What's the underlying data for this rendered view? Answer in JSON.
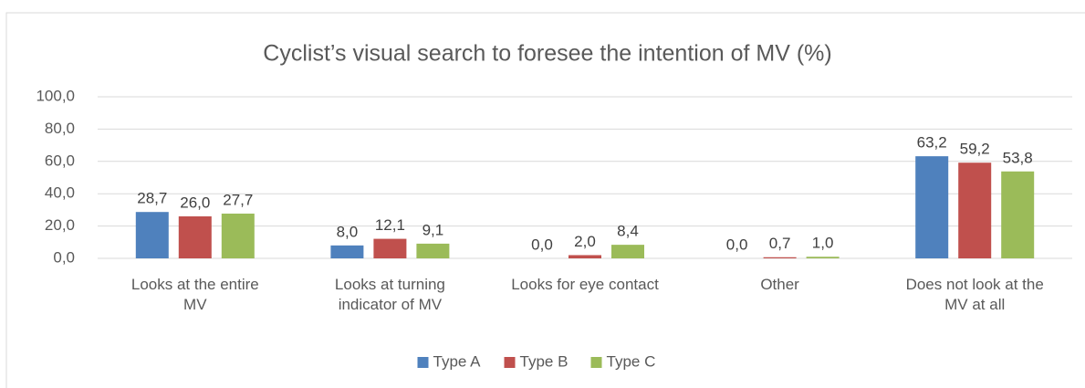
{
  "chart_data": {
    "type": "bar",
    "title": "Cyclist’s visual search to foresee the intention of MV (%)",
    "categories": [
      "Looks at the entire\nMV",
      "Looks at turning\nindicator of MV",
      "Looks for eye contact",
      "Other",
      "Does not look at the\nMV at all"
    ],
    "series": [
      {
        "name": "Type A",
        "color": "#4f81bd",
        "values": [
          28.7,
          8.0,
          0.0,
          0.0,
          63.2
        ],
        "value_labels": [
          "28,7",
          "8,0",
          "0,0",
          "0,0",
          "63,2"
        ]
      },
      {
        "name": "Type B",
        "color": "#c0504d",
        "values": [
          26.0,
          12.1,
          2.0,
          0.7,
          59.2
        ],
        "value_labels": [
          "26,0",
          "12,1",
          "2,0",
          "0,7",
          "59,2"
        ]
      },
      {
        "name": "Type C",
        "color": "#9bbb59",
        "values": [
          27.7,
          9.1,
          8.4,
          1.0,
          53.8
        ],
        "value_labels": [
          "27,7",
          "9,1",
          "8,4",
          "1,0",
          "53,8"
        ]
      }
    ],
    "ylim": [
      0,
      100
    ],
    "yticks": [
      {
        "value": 0,
        "label": "0,0"
      },
      {
        "value": 20,
        "label": "20,0"
      },
      {
        "value": 40,
        "label": "40,0"
      },
      {
        "value": 60,
        "label": "60,0"
      },
      {
        "value": 80,
        "label": "80,0"
      },
      {
        "value": 100,
        "label": "100,0"
      }
    ],
    "grid": true,
    "legend": "bottom"
  }
}
